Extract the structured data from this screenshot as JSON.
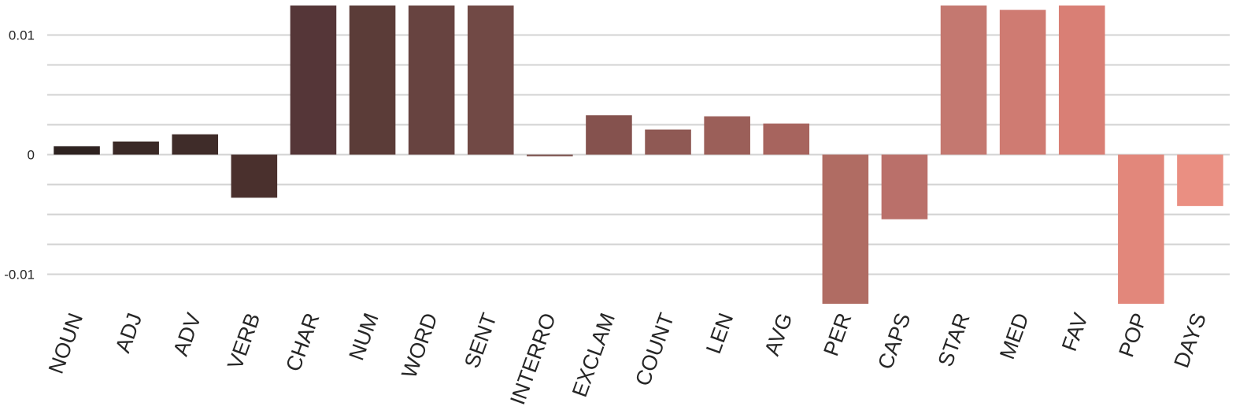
{
  "chart_data": {
    "type": "bar",
    "title": "",
    "xlabel": "",
    "ylabel": "",
    "categories": [
      "NOUN",
      "ADJ",
      "ADV",
      "VERB",
      "CHAR",
      "NUM",
      "WORD",
      "SENT",
      "INTERRO",
      "EXCLAM",
      "COUNT",
      "LEN",
      "AVG",
      "PER",
      "CAPS",
      "STAR",
      "MED",
      "FAV",
      "POP",
      "DAYS"
    ],
    "values": [
      0.0007,
      0.0011,
      0.0017,
      -0.0036,
      0.0125,
      0.0125,
      0.0125,
      0.0125,
      -0.0001,
      0.0033,
      0.0021,
      0.0032,
      0.0026,
      -0.0125,
      -0.0054,
      0.0125,
      0.0121,
      0.0125,
      -0.0125,
      -0.0043
    ],
    "colors": [
      "#2e2220",
      "#3a2926",
      "#3f2c29",
      "#4a302d",
      "#553638",
      "#5b3c38",
      "#674340",
      "#714945",
      "#7a4f4b",
      "#85524e",
      "#8f5954",
      "#9b5f59",
      "#a7645e",
      "#b06c63",
      "#ba706a",
      "#c47870",
      "#cf7b72",
      "#d97f75",
      "#e2877b",
      "#ea8f82"
    ],
    "ylim": [
      -0.0125,
      0.0125
    ],
    "yticks": [
      {
        "value": 0.01,
        "label": "0.01"
      },
      {
        "value": 0,
        "label": "0"
      },
      {
        "value": -0.01,
        "label": "-0.01"
      }
    ],
    "grid_values": [
      0.01,
      0.0075,
      0.005,
      0.0025,
      0,
      -0.0025,
      -0.005,
      -0.0075,
      -0.01
    ],
    "grid": true,
    "legend": "none"
  }
}
